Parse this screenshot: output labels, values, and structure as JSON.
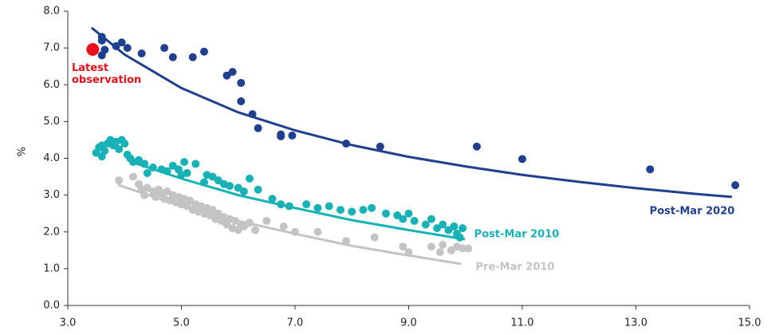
{
  "chart_data": {
    "type": "scatter",
    "ylabel": "%",
    "xlim": [
      3,
      15
    ],
    "ylim": [
      0,
      8
    ],
    "xticks": [
      {
        "value": 3,
        "label": "3.0"
      },
      {
        "value": 5,
        "label": "5.0"
      },
      {
        "value": 7,
        "label": "7.0"
      },
      {
        "value": 9,
        "label": "9.0"
      },
      {
        "value": 11,
        "label": "11.0"
      },
      {
        "value": 13,
        "label": "13.0"
      },
      {
        "value": 15,
        "label": "15.0"
      }
    ],
    "yticks": [
      {
        "value": 0,
        "label": "0.0"
      },
      {
        "value": 1,
        "label": "1.0"
      },
      {
        "value": 2,
        "label": "2.0"
      },
      {
        "value": 3,
        "label": "3.0"
      },
      {
        "value": 4,
        "label": "4.0"
      },
      {
        "value": 5,
        "label": "5.0"
      },
      {
        "value": 6,
        "label": "6.0"
      },
      {
        "value": 7,
        "label": "7.0"
      },
      {
        "value": 8,
        "label": "8.0"
      }
    ],
    "series": [
      {
        "name": "Pre-Mar 2010",
        "color": "#c4c4c4",
        "points": [
          [
            3.9,
            3.4
          ],
          [
            4.15,
            3.5
          ],
          [
            4.25,
            3.3
          ],
          [
            4.3,
            3.15
          ],
          [
            4.35,
            3.0
          ],
          [
            4.4,
            3.2
          ],
          [
            4.5,
            3.1
          ],
          [
            4.55,
            2.95
          ],
          [
            4.6,
            3.15
          ],
          [
            4.65,
            3.05
          ],
          [
            4.7,
            2.9
          ],
          [
            4.75,
            3.1
          ],
          [
            4.8,
            2.85
          ],
          [
            4.85,
            3.0
          ],
          [
            4.9,
            2.8
          ],
          [
            4.95,
            2.95
          ],
          [
            5.0,
            2.75
          ],
          [
            5.05,
            2.9
          ],
          [
            5.1,
            2.7
          ],
          [
            5.15,
            2.85
          ],
          [
            5.2,
            2.6
          ],
          [
            5.25,
            2.75
          ],
          [
            5.3,
            2.55
          ],
          [
            5.35,
            2.7
          ],
          [
            5.4,
            2.5
          ],
          [
            5.45,
            2.65
          ],
          [
            5.5,
            2.45
          ],
          [
            5.55,
            2.6
          ],
          [
            5.6,
            2.35
          ],
          [
            5.65,
            2.5
          ],
          [
            5.7,
            2.3
          ],
          [
            5.75,
            2.4
          ],
          [
            5.8,
            2.2
          ],
          [
            5.85,
            2.35
          ],
          [
            5.9,
            2.1
          ],
          [
            5.95,
            2.3
          ],
          [
            6.0,
            2.05
          ],
          [
            6.05,
            2.2
          ],
          [
            6.1,
            2.15
          ],
          [
            6.2,
            2.25
          ],
          [
            6.3,
            2.05
          ],
          [
            6.5,
            2.3
          ],
          [
            6.8,
            2.15
          ],
          [
            7.0,
            2.0
          ],
          [
            7.4,
            2.0
          ],
          [
            7.9,
            1.75
          ],
          [
            8.4,
            1.85
          ],
          [
            8.9,
            1.6
          ],
          [
            9.0,
            1.45
          ],
          [
            9.4,
            1.6
          ],
          [
            9.55,
            1.45
          ],
          [
            9.6,
            1.65
          ],
          [
            9.75,
            1.5
          ],
          [
            9.85,
            1.6
          ],
          [
            9.95,
            1.55
          ],
          [
            10.05,
            1.55
          ]
        ],
        "fit": [
          [
            3.88,
            3.28
          ],
          [
            5,
            2.7
          ],
          [
            6,
            2.3
          ],
          [
            7,
            1.95
          ],
          [
            8,
            1.62
          ],
          [
            9,
            1.36
          ],
          [
            9.92,
            1.13
          ]
        ]
      },
      {
        "name": "Post-Mar 2010",
        "color": "#17b1b6",
        "points": [
          [
            3.5,
            4.15
          ],
          [
            3.55,
            4.3
          ],
          [
            3.6,
            4.05
          ],
          [
            3.6,
            4.35
          ],
          [
            3.65,
            4.2
          ],
          [
            3.7,
            4.4
          ],
          [
            3.75,
            4.5
          ],
          [
            3.8,
            4.35
          ],
          [
            3.85,
            4.45
          ],
          [
            3.9,
            4.25
          ],
          [
            3.95,
            4.5
          ],
          [
            4.0,
            4.4
          ],
          [
            4.05,
            4.1
          ],
          [
            4.1,
            4.0
          ],
          [
            4.15,
            3.9
          ],
          [
            4.25,
            3.95
          ],
          [
            4.35,
            3.85
          ],
          [
            4.4,
            3.6
          ],
          [
            4.5,
            3.75
          ],
          [
            4.65,
            3.7
          ],
          [
            4.75,
            3.65
          ],
          [
            4.85,
            3.8
          ],
          [
            4.95,
            3.7
          ],
          [
            5.0,
            3.55
          ],
          [
            5.05,
            3.9
          ],
          [
            5.1,
            3.6
          ],
          [
            5.25,
            3.85
          ],
          [
            5.4,
            3.35
          ],
          [
            5.45,
            3.55
          ],
          [
            5.55,
            3.5
          ],
          [
            5.65,
            3.4
          ],
          [
            5.75,
            3.3
          ],
          [
            5.85,
            3.25
          ],
          [
            6.0,
            3.2
          ],
          [
            6.1,
            3.1
          ],
          [
            6.2,
            3.45
          ],
          [
            6.35,
            3.15
          ],
          [
            6.6,
            2.9
          ],
          [
            6.75,
            2.75
          ],
          [
            6.9,
            2.7
          ],
          [
            7.2,
            2.75
          ],
          [
            7.4,
            2.65
          ],
          [
            7.6,
            2.7
          ],
          [
            7.8,
            2.6
          ],
          [
            8.0,
            2.55
          ],
          [
            8.2,
            2.6
          ],
          [
            8.35,
            2.65
          ],
          [
            8.6,
            2.5
          ],
          [
            8.8,
            2.45
          ],
          [
            8.9,
            2.35
          ],
          [
            9.0,
            2.5
          ],
          [
            9.1,
            2.3
          ],
          [
            9.3,
            2.2
          ],
          [
            9.4,
            2.35
          ],
          [
            9.5,
            2.1
          ],
          [
            9.6,
            2.2
          ],
          [
            9.7,
            2.05
          ],
          [
            9.8,
            2.15
          ],
          [
            9.85,
            1.95
          ],
          [
            9.9,
            1.85
          ],
          [
            9.95,
            2.1
          ]
        ],
        "fit": [
          [
            4.2,
            3.86
          ],
          [
            5,
            3.45
          ],
          [
            6,
            3.0
          ],
          [
            7,
            2.65
          ],
          [
            8,
            2.32
          ],
          [
            9,
            2.05
          ],
          [
            9.99,
            1.8
          ]
        ]
      },
      {
        "name": "Post-Mar 2020",
        "color": "#1f3f8f",
        "points": [
          [
            3.6,
            7.3
          ],
          [
            3.6,
            7.2
          ],
          [
            3.65,
            6.95
          ],
          [
            3.6,
            6.8
          ],
          [
            3.85,
            7.05
          ],
          [
            3.95,
            7.15
          ],
          [
            4.05,
            7.0
          ],
          [
            4.3,
            6.85
          ],
          [
            4.7,
            7.0
          ],
          [
            4.85,
            6.75
          ],
          [
            5.2,
            6.75
          ],
          [
            5.4,
            6.9
          ],
          [
            5.8,
            6.25
          ],
          [
            5.9,
            6.35
          ],
          [
            6.05,
            6.05
          ],
          [
            6.05,
            5.55
          ],
          [
            6.25,
            5.2
          ],
          [
            6.35,
            4.82
          ],
          [
            6.75,
            4.65
          ],
          [
            6.75,
            4.6
          ],
          [
            6.95,
            4.62
          ],
          [
            7.9,
            4.4
          ],
          [
            8.5,
            4.32
          ],
          [
            10.2,
            4.32
          ],
          [
            11.0,
            3.98
          ],
          [
            13.25,
            3.7
          ],
          [
            14.75,
            3.27
          ]
        ],
        "fit": [
          [
            3.42,
            7.55
          ],
          [
            4,
            6.82
          ],
          [
            5,
            5.91
          ],
          [
            6,
            5.25
          ],
          [
            7,
            4.76
          ],
          [
            8,
            4.36
          ],
          [
            9,
            4.04
          ],
          [
            10,
            3.78
          ],
          [
            11,
            3.55
          ],
          [
            12,
            3.36
          ],
          [
            13,
            3.19
          ],
          [
            14,
            3.04
          ],
          [
            14.69,
            2.95
          ]
        ]
      },
      {
        "name": "Latest observation",
        "color": "#e8101a",
        "points": [
          [
            3.44,
            6.96
          ]
        ]
      }
    ]
  }
}
